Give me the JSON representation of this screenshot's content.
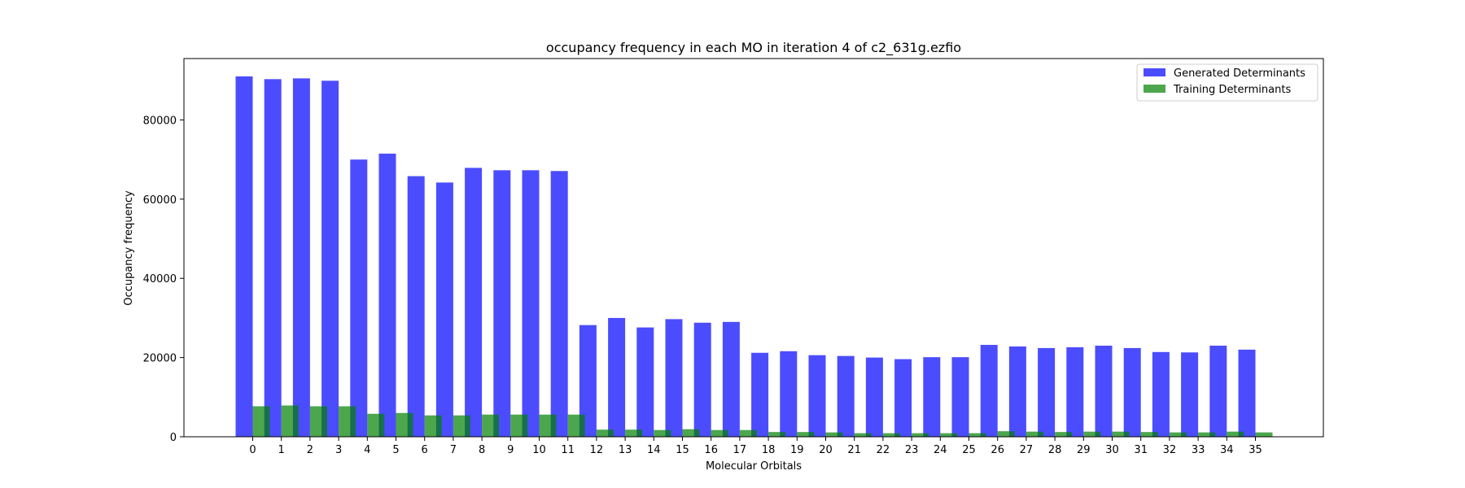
{
  "chart_data": {
    "type": "bar",
    "title": "occupancy frequency in each MO in iteration 4 of c2_631g.ezfio",
    "xlabel": "Molecular Orbitals",
    "ylabel": "Occupancy frequency",
    "categories": [
      "0",
      "1",
      "2",
      "3",
      "4",
      "5",
      "6",
      "7",
      "8",
      "9",
      "10",
      "11",
      "12",
      "13",
      "14",
      "15",
      "16",
      "17",
      "18",
      "19",
      "20",
      "21",
      "22",
      "23",
      "24",
      "25",
      "26",
      "27",
      "28",
      "29",
      "30",
      "31",
      "32",
      "33",
      "34",
      "35"
    ],
    "ylim": [
      0,
      95500
    ],
    "yticks": [
      0,
      20000,
      40000,
      60000,
      80000
    ],
    "ytick_labels": [
      "0",
      "20000",
      "40000",
      "60000",
      "80000"
    ],
    "legend": "top-right",
    "series": [
      {
        "name": "Generated Determinants",
        "color": "#0000ff",
        "alpha": 0.7,
        "values": [
          91000,
          90300,
          90500,
          89900,
          70000,
          71500,
          65800,
          64200,
          67900,
          67300,
          67300,
          67100,
          28200,
          30000,
          27600,
          29700,
          28800,
          29000,
          21200,
          21600,
          20600,
          20400,
          20000,
          19600,
          20100,
          20100,
          23200,
          22800,
          22400,
          22600,
          23000,
          22400,
          21400,
          21300,
          23000,
          22000
        ]
      },
      {
        "name": "Training Determinants",
        "color": "#008000",
        "alpha": 0.7,
        "values": [
          7700,
          7900,
          7700,
          7700,
          5800,
          6000,
          5400,
          5400,
          5600,
          5600,
          5600,
          5600,
          1800,
          1800,
          1700,
          1900,
          1700,
          1700,
          1200,
          1200,
          1100,
          900,
          900,
          900,
          900,
          900,
          1400,
          1300,
          1200,
          1300,
          1300,
          1200,
          1100,
          1100,
          1300,
          1100
        ]
      }
    ]
  }
}
